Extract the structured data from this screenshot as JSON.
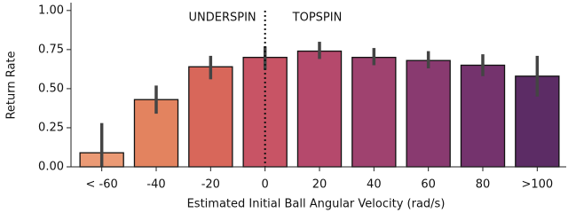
{
  "chart_data": {
    "type": "bar",
    "xlabel": "Estimated Initial Ball Angular Velocity (rad/s)",
    "ylabel": "Return Rate",
    "annotations": [
      "UNDERSPIN",
      "TOPSPIN"
    ],
    "categories": [
      "< -60",
      "-40",
      "-20",
      "0",
      "20",
      "40",
      "60",
      "80",
      ">100"
    ],
    "values": [
      0.09,
      0.43,
      0.64,
      0.7,
      0.74,
      0.7,
      0.68,
      0.65,
      0.58
    ],
    "ci_low": [
      0.0,
      0.34,
      0.56,
      0.62,
      0.69,
      0.65,
      0.63,
      0.58,
      0.45
    ],
    "ci_high": [
      0.28,
      0.52,
      0.71,
      0.77,
      0.8,
      0.76,
      0.74,
      0.72,
      0.71
    ],
    "colors": [
      "#eb9a75",
      "#e3835f",
      "#d8675a",
      "#c85465",
      "#b5496c",
      "#9f426f",
      "#893a70",
      "#74336d",
      "#5c2c65"
    ],
    "ylim": [
      0,
      1.05
    ],
    "yticks": [
      {
        "value": 0,
        "label": "0.00"
      },
      {
        "value": 0.25,
        "label": "0.25"
      },
      {
        "value": 0.5,
        "label": "0.50"
      },
      {
        "value": 0.75,
        "label": "0.75"
      },
      {
        "value": 1.0,
        "label": "1.00"
      }
    ]
  }
}
